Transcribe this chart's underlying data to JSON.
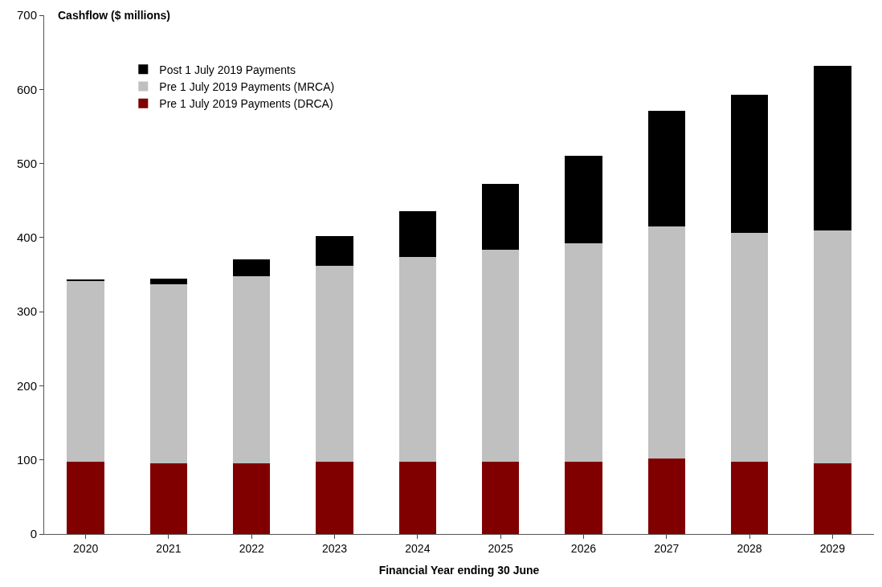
{
  "chart_data": {
    "type": "bar",
    "stacked": true,
    "ylabel": "Cashflow ($ millions)",
    "xlabel": "Financial Year ending 30 June",
    "categories": [
      "2020",
      "2021",
      "2022",
      "2023",
      "2024",
      "2025",
      "2026",
      "2027",
      "2028",
      "2029"
    ],
    "series": [
      {
        "name": "Pre 1 July 2019 Payments (DRCA)",
        "color": "#800000",
        "values": [
          98,
          95,
          95,
          97,
          97,
          98,
          98,
          102,
          97,
          95
        ]
      },
      {
        "name": "Pre 1 July 2019 Payments (MRCA)",
        "color": "#c0c0c0",
        "values": [
          244,
          242,
          253,
          265,
          277,
          286,
          294,
          313,
          309,
          315
        ]
      },
      {
        "name": "Post 1 July 2019 Payments",
        "color": "#000000",
        "values": [
          1,
          8,
          23,
          40,
          62,
          88,
          118,
          156,
          187,
          222
        ]
      }
    ],
    "ylim": [
      0,
      700
    ],
    "yticks": [
      0,
      100,
      200,
      300,
      400,
      500,
      600,
      700
    ],
    "legend": "top left"
  }
}
